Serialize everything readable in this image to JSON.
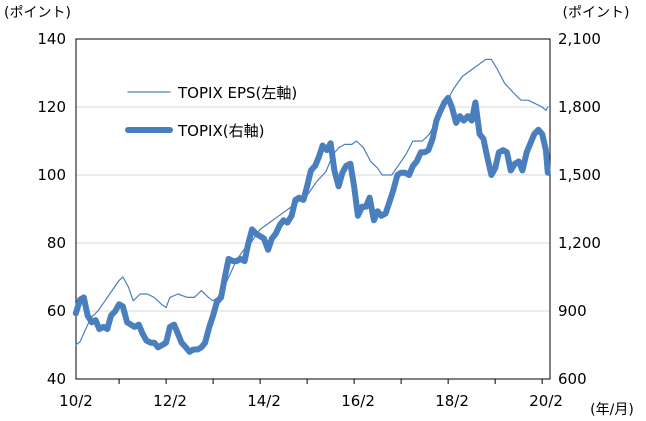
{
  "chart_data": {
    "type": "line",
    "title": "",
    "left_unit": "(ポイント)",
    "right_unit": "(ポイント)",
    "x_unit": "(年/月)",
    "x_ticks": [
      "10/2",
      "12/2",
      "14/2",
      "16/2",
      "18/2",
      "20/2"
    ],
    "x_range": [
      2010.0833,
      2020.1667
    ],
    "y_left": {
      "ticks": [
        "40",
        "60",
        "80",
        "100",
        "120",
        "140"
      ],
      "range": [
        40,
        140
      ]
    },
    "y_right": {
      "ticks": [
        "600",
        "900",
        "1,200",
        "1,500",
        "1,800",
        "2,100"
      ],
      "range": [
        600,
        2100
      ]
    },
    "grid": "horizontal",
    "legend_position": "top-left",
    "series": [
      {
        "name": "TOPIX EPS(左軸)",
        "axis": "left",
        "color": "#4a7fbf",
        "style": "thin",
        "points": [
          [
            2010.08,
            50
          ],
          [
            2010.17,
            51
          ],
          [
            2010.3,
            55
          ],
          [
            2010.4,
            58
          ],
          [
            2010.55,
            60
          ],
          [
            2010.7,
            63
          ],
          [
            2010.85,
            66
          ],
          [
            2011.0,
            69
          ],
          [
            2011.08,
            70
          ],
          [
            2011.2,
            67
          ],
          [
            2011.3,
            63
          ],
          [
            2011.45,
            65
          ],
          [
            2011.6,
            65
          ],
          [
            2011.75,
            64
          ],
          [
            2011.9,
            62
          ],
          [
            2012.0,
            61
          ],
          [
            2012.08,
            64
          ],
          [
            2012.25,
            65
          ],
          [
            2012.45,
            64
          ],
          [
            2012.6,
            64
          ],
          [
            2012.75,
            66
          ],
          [
            2012.9,
            64
          ],
          [
            2013.0,
            63
          ],
          [
            2013.1,
            64
          ],
          [
            2013.3,
            69
          ],
          [
            2013.5,
            75
          ],
          [
            2013.65,
            78
          ],
          [
            2013.8,
            80
          ],
          [
            2014.0,
            84
          ],
          [
            2014.2,
            86
          ],
          [
            2014.4,
            88
          ],
          [
            2014.6,
            90
          ],
          [
            2014.8,
            92
          ],
          [
            2015.0,
            94
          ],
          [
            2015.2,
            98
          ],
          [
            2015.4,
            101
          ],
          [
            2015.55,
            106
          ],
          [
            2015.67,
            108
          ],
          [
            2015.8,
            109
          ],
          [
            2015.95,
            109
          ],
          [
            2016.05,
            110
          ],
          [
            2016.2,
            108
          ],
          [
            2016.35,
            104
          ],
          [
            2016.5,
            102
          ],
          [
            2016.6,
            100
          ],
          [
            2016.8,
            100
          ],
          [
            2016.95,
            103
          ],
          [
            2017.1,
            106
          ],
          [
            2017.25,
            110
          ],
          [
            2017.45,
            110
          ],
          [
            2017.6,
            112
          ],
          [
            2017.8,
            117
          ],
          [
            2017.95,
            121
          ],
          [
            2018.1,
            125
          ],
          [
            2018.3,
            129
          ],
          [
            2018.5,
            131
          ],
          [
            2018.7,
            133
          ],
          [
            2018.8,
            134
          ],
          [
            2018.92,
            134
          ],
          [
            2019.05,
            131
          ],
          [
            2019.2,
            127
          ],
          [
            2019.4,
            124
          ],
          [
            2019.55,
            122
          ],
          [
            2019.7,
            122
          ],
          [
            2019.85,
            121
          ],
          [
            2020.0,
            120
          ],
          [
            2020.08,
            119
          ],
          [
            2020.12,
            120
          ]
        ]
      },
      {
        "name": "TOPIX(右軸)",
        "axis": "right",
        "color": "#4a7fbf",
        "style": "thick",
        "points": [
          [
            2010.08,
            890
          ],
          [
            2010.17,
            950
          ],
          [
            2010.25,
            960
          ],
          [
            2010.33,
            880
          ],
          [
            2010.42,
            850
          ],
          [
            2010.5,
            860
          ],
          [
            2010.58,
            820
          ],
          [
            2010.67,
            830
          ],
          [
            2010.75,
            820
          ],
          [
            2010.83,
            880
          ],
          [
            2010.92,
            900
          ],
          [
            2011.0,
            930
          ],
          [
            2011.08,
            920
          ],
          [
            2011.17,
            850
          ],
          [
            2011.25,
            840
          ],
          [
            2011.33,
            830
          ],
          [
            2011.42,
            840
          ],
          [
            2011.5,
            800
          ],
          [
            2011.58,
            770
          ],
          [
            2011.67,
            760
          ],
          [
            2011.75,
            760
          ],
          [
            2011.83,
            740
          ],
          [
            2011.92,
            750
          ],
          [
            2012.0,
            760
          ],
          [
            2012.08,
            830
          ],
          [
            2012.17,
            840
          ],
          [
            2012.25,
            800
          ],
          [
            2012.33,
            760
          ],
          [
            2012.42,
            740
          ],
          [
            2012.5,
            720
          ],
          [
            2012.58,
            730
          ],
          [
            2012.67,
            730
          ],
          [
            2012.75,
            740
          ],
          [
            2012.83,
            760
          ],
          [
            2012.92,
            830
          ],
          [
            2013.0,
            880
          ],
          [
            2013.08,
            940
          ],
          [
            2013.17,
            960
          ],
          [
            2013.25,
            1050
          ],
          [
            2013.33,
            1130
          ],
          [
            2013.42,
            1120
          ],
          [
            2013.5,
            1120
          ],
          [
            2013.58,
            1130
          ],
          [
            2013.67,
            1120
          ],
          [
            2013.75,
            1200
          ],
          [
            2013.83,
            1260
          ],
          [
            2013.92,
            1240
          ],
          [
            2014.0,
            1230
          ],
          [
            2014.08,
            1220
          ],
          [
            2014.17,
            1170
          ],
          [
            2014.25,
            1220
          ],
          [
            2014.33,
            1240
          ],
          [
            2014.42,
            1280
          ],
          [
            2014.5,
            1300
          ],
          [
            2014.58,
            1290
          ],
          [
            2014.67,
            1320
          ],
          [
            2014.75,
            1390
          ],
          [
            2014.83,
            1400
          ],
          [
            2014.92,
            1390
          ],
          [
            2015.0,
            1450
          ],
          [
            2015.08,
            1520
          ],
          [
            2015.17,
            1540
          ],
          [
            2015.25,
            1580
          ],
          [
            2015.33,
            1630
          ],
          [
            2015.42,
            1610
          ],
          [
            2015.5,
            1640
          ],
          [
            2015.58,
            1520
          ],
          [
            2015.67,
            1450
          ],
          [
            2015.75,
            1510
          ],
          [
            2015.83,
            1540
          ],
          [
            2015.92,
            1550
          ],
          [
            2016.0,
            1450
          ],
          [
            2016.08,
            1320
          ],
          [
            2016.17,
            1360
          ],
          [
            2016.25,
            1360
          ],
          [
            2016.33,
            1400
          ],
          [
            2016.42,
            1300
          ],
          [
            2016.5,
            1340
          ],
          [
            2016.58,
            1320
          ],
          [
            2016.67,
            1330
          ],
          [
            2016.75,
            1380
          ],
          [
            2016.83,
            1430
          ],
          [
            2016.92,
            1500
          ],
          [
            2017.0,
            1510
          ],
          [
            2017.08,
            1510
          ],
          [
            2017.17,
            1500
          ],
          [
            2017.25,
            1540
          ],
          [
            2017.33,
            1560
          ],
          [
            2017.42,
            1600
          ],
          [
            2017.5,
            1600
          ],
          [
            2017.58,
            1610
          ],
          [
            2017.67,
            1660
          ],
          [
            2017.75,
            1740
          ],
          [
            2017.83,
            1780
          ],
          [
            2017.92,
            1820
          ],
          [
            2018.0,
            1840
          ],
          [
            2018.08,
            1800
          ],
          [
            2018.17,
            1730
          ],
          [
            2018.25,
            1760
          ],
          [
            2018.33,
            1740
          ],
          [
            2018.42,
            1760
          ],
          [
            2018.5,
            1740
          ],
          [
            2018.58,
            1820
          ],
          [
            2018.67,
            1680
          ],
          [
            2018.75,
            1660
          ],
          [
            2018.83,
            1580
          ],
          [
            2018.92,
            1500
          ],
          [
            2019.0,
            1530
          ],
          [
            2019.08,
            1600
          ],
          [
            2019.17,
            1610
          ],
          [
            2019.25,
            1600
          ],
          [
            2019.33,
            1520
          ],
          [
            2019.42,
            1550
          ],
          [
            2019.5,
            1560
          ],
          [
            2019.58,
            1520
          ],
          [
            2019.67,
            1600
          ],
          [
            2019.75,
            1640
          ],
          [
            2019.83,
            1680
          ],
          [
            2019.92,
            1700
          ],
          [
            2020.0,
            1680
          ],
          [
            2020.08,
            1610
          ],
          [
            2020.12,
            1510
          ]
        ]
      }
    ]
  }
}
